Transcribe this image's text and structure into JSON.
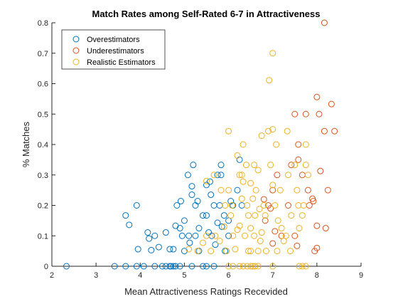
{
  "chart_data": {
    "type": "scatter",
    "title": "Match Rates among Self-Rated 6-7 in Attractiveness",
    "xlabel": "Mean Attractiveness Ratings Recevided",
    "ylabel": "% Matches",
    "xlim": [
      2,
      9
    ],
    "ylim": [
      0,
      0.8
    ],
    "xticks": [
      2,
      3,
      4,
      5,
      6,
      7,
      8,
      9
    ],
    "yticks": [
      0,
      0.1,
      0.2,
      0.3,
      0.4,
      0.5,
      0.6,
      0.7,
      0.8
    ],
    "grid": false,
    "legend_position": "top-left",
    "series": [
      {
        "name": "Overestimators",
        "color": "#0072BD",
        "points": [
          [
            2.33,
            0
          ],
          [
            3.42,
            0
          ],
          [
            3.67,
            0
          ],
          [
            3.92,
            0
          ],
          [
            4.08,
            0
          ],
          [
            4.33,
            0
          ],
          [
            4.5,
            0
          ],
          [
            4.58,
            0
          ],
          [
            4.67,
            0
          ],
          [
            4.7,
            0
          ],
          [
            4.75,
            0
          ],
          [
            4.8,
            0
          ],
          [
            4.9,
            0
          ],
          [
            5.17,
            0
          ],
          [
            5.42,
            0
          ],
          [
            5.5,
            0
          ],
          [
            5.67,
            0
          ],
          [
            3.67,
            0.167
          ],
          [
            3.75,
            0.136
          ],
          [
            3.92,
            0.2
          ],
          [
            3.95,
            0.056
          ],
          [
            4.17,
            0.111
          ],
          [
            4.2,
            0.091
          ],
          [
            4.25,
            0.053
          ],
          [
            4.33,
            0.1
          ],
          [
            4.42,
            0.063
          ],
          [
            4.58,
            0.111
          ],
          [
            4.67,
            0.056
          ],
          [
            4.75,
            0.056
          ],
          [
            4.8,
            0.133
          ],
          [
            4.83,
            0.2
          ],
          [
            4.9,
            0.125
          ],
          [
            4.92,
            0.214
          ],
          [
            4.95,
            0.1
          ],
          [
            5.0,
            0.05
          ],
          [
            5.0,
            0.15
          ],
          [
            5.08,
            0.3
          ],
          [
            5.1,
            0.1
          ],
          [
            5.12,
            0.077
          ],
          [
            5.17,
            0.263
          ],
          [
            5.17,
            0.235
          ],
          [
            5.2,
            0.333
          ],
          [
            5.25,
            0.2
          ],
          [
            5.25,
            0.1
          ],
          [
            5.3,
            0.214
          ],
          [
            5.33,
            0.125
          ],
          [
            5.33,
            0.05
          ],
          [
            5.42,
            0.167
          ],
          [
            5.5,
            0.267
          ],
          [
            5.5,
            0.167
          ],
          [
            5.55,
            0.111
          ],
          [
            5.58,
            0.278
          ],
          [
            5.6,
            0.235
          ],
          [
            5.62,
            0.1
          ],
          [
            5.67,
            0.2
          ],
          [
            5.7,
            0.071
          ],
          [
            5.75,
            0.143
          ],
          [
            5.75,
            0.3
          ],
          [
            5.8,
            0.2
          ],
          [
            5.83,
            0.333
          ],
          [
            5.83,
            0.3
          ],
          [
            5.85,
            0.13
          ],
          [
            5.9,
            0.167
          ],
          [
            5.95,
            0.05
          ],
          [
            6.0,
            0.15
          ],
          [
            6.05,
            0.214
          ],
          [
            6.1,
            0.2
          ],
          [
            6.2,
            0.25
          ],
          [
            6.25,
            0.35
          ],
          [
            6.3,
            0.2
          ],
          [
            6.0,
            0.1
          ],
          [
            5.92,
            0.05
          ]
        ]
      },
      {
        "name": "Underestimators",
        "color": "#D95319",
        "points": [
          [
            6.8,
            0.22
          ],
          [
            6.83,
            0.15
          ],
          [
            6.9,
            0.2
          ],
          [
            6.95,
            0.19
          ],
          [
            7.0,
            0.25
          ],
          [
            7.0,
            0.075
          ],
          [
            7.05,
            0.115
          ],
          [
            7.1,
            0.3
          ],
          [
            7.2,
            0.1
          ],
          [
            7.35,
            0.2
          ],
          [
            7.42,
            0.333
          ],
          [
            7.5,
            0.5
          ],
          [
            7.5,
            0.1
          ],
          [
            7.55,
            0.067
          ],
          [
            7.58,
            0.4
          ],
          [
            7.58,
            0.35
          ],
          [
            7.67,
            0.3
          ],
          [
            7.75,
            0.5
          ],
          [
            7.8,
            0.25
          ],
          [
            7.83,
            0.2
          ],
          [
            7.9,
            0.222
          ],
          [
            7.92,
            0.214
          ],
          [
            7.95,
            0.05
          ],
          [
            8.0,
            0.556
          ],
          [
            8.0,
            0.133
          ],
          [
            8.0,
            0.06
          ],
          [
            8.05,
            0.5
          ],
          [
            8.08,
            0.313
          ],
          [
            8.17,
            0.8
          ],
          [
            8.17,
            0.444
          ],
          [
            8.2,
            0.125
          ],
          [
            8.25,
            0.25
          ],
          [
            8.33,
            0.533
          ],
          [
            8.4,
            0.444
          ]
        ]
      },
      {
        "name": "Realistic Estimators",
        "color": "#EDB120",
        "points": [
          [
            6.0,
            0
          ],
          [
            6.1,
            0
          ],
          [
            6.25,
            0
          ],
          [
            6.33,
            0
          ],
          [
            6.42,
            0
          ],
          [
            6.5,
            0
          ],
          [
            6.55,
            0
          ],
          [
            6.6,
            0
          ],
          [
            6.67,
            0
          ],
          [
            7.0,
            0
          ],
          [
            7.6,
            0
          ],
          [
            7.67,
            0
          ],
          [
            7.75,
            0
          ],
          [
            5.1,
            0.056
          ],
          [
            5.3,
            0.05
          ],
          [
            5.42,
            0.077
          ],
          [
            5.5,
            0.1
          ],
          [
            5.6,
            0.05
          ],
          [
            5.7,
            0.1
          ],
          [
            5.8,
            0.083
          ],
          [
            5.83,
            0.25
          ],
          [
            5.9,
            0.13
          ],
          [
            5.92,
            0.2
          ],
          [
            5.95,
            0.05
          ],
          [
            6.0,
            0.25
          ],
          [
            6.0,
            0.444
          ],
          [
            6.05,
            0.167
          ],
          [
            6.08,
            0.2
          ],
          [
            6.1,
            0.1
          ],
          [
            6.15,
            0.056
          ],
          [
            6.2,
            0.364
          ],
          [
            6.25,
            0.133
          ],
          [
            6.25,
            0.3
          ],
          [
            6.3,
            0.222
          ],
          [
            6.33,
            0.278
          ],
          [
            6.33,
            0.4
          ],
          [
            6.37,
            0.1
          ],
          [
            6.4,
            0.333
          ],
          [
            6.42,
            0.2
          ],
          [
            6.45,
            0.167
          ],
          [
            6.5,
            0.125
          ],
          [
            6.5,
            0.273
          ],
          [
            6.5,
            0.05
          ],
          [
            6.55,
            0.222
          ],
          [
            6.58,
            0.333
          ],
          [
            6.58,
            0.1
          ],
          [
            6.6,
            0.167
          ],
          [
            6.62,
            0.25
          ],
          [
            6.67,
            0.316
          ],
          [
            6.67,
            0.05
          ],
          [
            6.7,
            0.188
          ],
          [
            6.72,
            0.083
          ],
          [
            6.75,
            0.111
          ],
          [
            6.75,
            0.429
          ],
          [
            6.8,
            0.2
          ],
          [
            6.83,
            0.167
          ],
          [
            6.85,
            0.05
          ],
          [
            6.9,
            0.444
          ],
          [
            6.92,
            0.611
          ],
          [
            6.95,
            0.333
          ],
          [
            7.0,
            0.7
          ],
          [
            7.0,
            0.45
          ],
          [
            7.0,
            0.267
          ],
          [
            7.05,
            0.2
          ],
          [
            7.08,
            0.4
          ],
          [
            7.1,
            0.05
          ],
          [
            7.12,
            0.15
          ],
          [
            7.17,
            0.25
          ],
          [
            7.2,
            0.125
          ],
          [
            7.25,
            0.083
          ],
          [
            7.3,
            0.1
          ],
          [
            7.33,
            0.444
          ],
          [
            7.35,
            0.3
          ],
          [
            7.4,
            0.05
          ],
          [
            7.42,
            0.167
          ],
          [
            7.5,
            0.333
          ],
          [
            7.55,
            0.25
          ],
          [
            7.58,
            0.2
          ],
          [
            7.6,
            0.125
          ],
          [
            7.67,
            0.167
          ],
          [
            7.7,
            0.2
          ],
          [
            7.75,
            0.333
          ],
          [
            7.75,
            0.4
          ],
          [
            7.8,
            0.3
          ],
          [
            5.5,
            0.28
          ],
          [
            5.67,
            0.3
          ],
          [
            6.3,
            0.3
          ],
          [
            6.2,
            0.12
          ],
          [
            6.45,
            0.05
          ]
        ]
      }
    ]
  }
}
